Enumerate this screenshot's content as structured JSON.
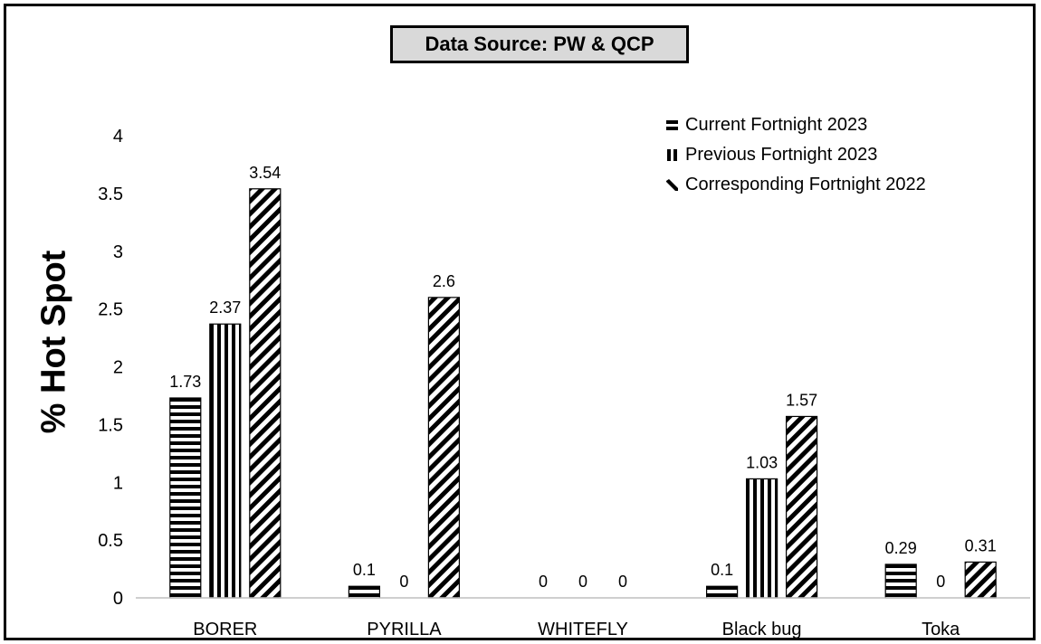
{
  "chart_data": {
    "type": "bar",
    "title": "Data Source: PW & QCP",
    "ylabel": "% Hot Spot",
    "xlabel": "",
    "categories": [
      "BORER",
      "PYRILLA",
      "WHITEFLY",
      "Black bug",
      "Toka"
    ],
    "series": [
      {
        "name": "Current Fortnight 2023",
        "values": [
          1.73,
          0.1,
          0,
          0.1,
          0.29
        ],
        "value_labels": [
          "1.73",
          "0.1",
          "0",
          "0.1",
          "0.29"
        ],
        "pattern": "horizontal-stripes"
      },
      {
        "name": "Previous Fortnight 2023",
        "values": [
          2.37,
          0,
          0,
          1.03,
          0
        ],
        "value_labels": [
          "2.37",
          "0",
          "0",
          "1.03",
          "0"
        ],
        "pattern": "vertical-stripes"
      },
      {
        "name": "Corresponding Fortnight 2022",
        "values": [
          3.54,
          2.6,
          0,
          1.57,
          0.31
        ],
        "value_labels": [
          "3.54",
          "2.6",
          "0",
          "1.57",
          "0.31"
        ],
        "pattern": "diagonal-stripes"
      }
    ],
    "ylim": [
      0,
      4
    ],
    "yticks": [
      "0",
      "0.5",
      "1",
      "1.5",
      "2",
      "2.5",
      "3",
      "3.5",
      "4"
    ],
    "grid": false,
    "legend_position": "top-right",
    "colors": {
      "bar_stroke": "#000000",
      "title_box_fill": "#d9d9d9",
      "axis": "#bfbfbf"
    }
  }
}
